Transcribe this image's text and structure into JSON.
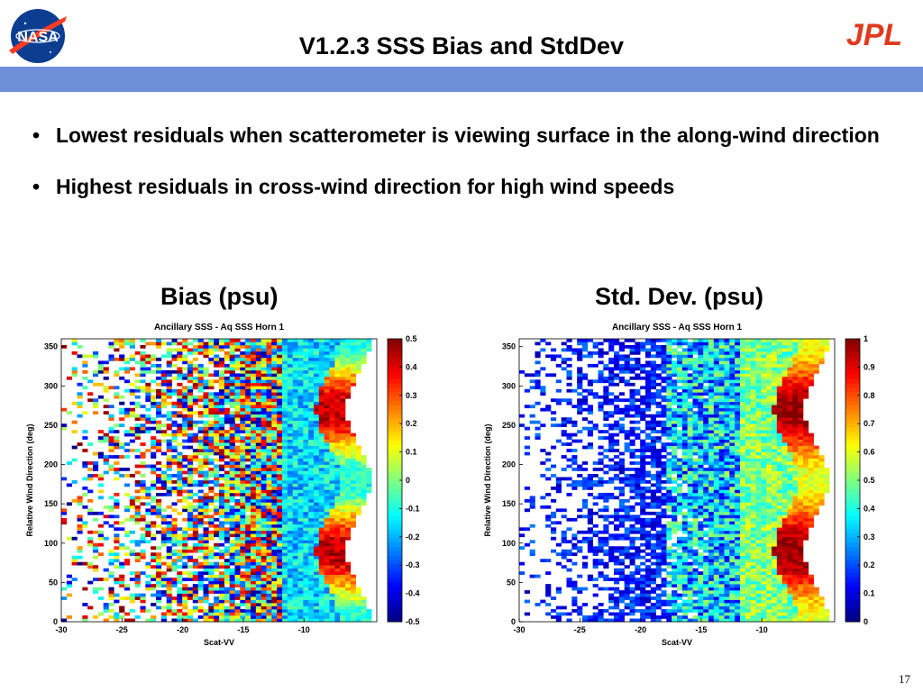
{
  "slide": {
    "title": "V1.2.3 SSS Bias and StdDev",
    "page_number": "17",
    "logos": [
      "NASA",
      "JPL"
    ],
    "bullets": [
      "Lowest residuals when scatterometer is viewing surface in the along-wind direction",
      "Highest residuals in cross-wind direction for high wind speeds"
    ],
    "bullet_marker": "•"
  },
  "panels": {
    "left_label": "Bias (psu)",
    "right_label": "Std. Dev. (psu)"
  },
  "chart_data": [
    {
      "type": "heatmap",
      "title": "Ancillary SSS - Aq SSS Horn 1",
      "xlabel": "Scat-VV",
      "ylabel": "Relative Wind Direction (deg)",
      "xlim": [
        -30,
        -4
      ],
      "ylim": [
        0,
        360
      ],
      "x_ticks": [
        "-30",
        "-25",
        "-20",
        "-15",
        "-10"
      ],
      "y_ticks": [
        "0",
        "50",
        "100",
        "150",
        "200",
        "250",
        "300",
        "350"
      ],
      "colorbar": {
        "label": "Bias (psu)",
        "range": [
          -0.5,
          0.5
        ],
        "ticks": [
          "-0.5",
          "-0.4",
          "-0.3",
          "-0.2",
          "-0.1",
          "0",
          "0.1",
          "0.2",
          "0.3",
          "0.4",
          "0.5"
        ],
        "colormap": "jet"
      },
      "description_values": {
        "low_wind_region_x": [
          -30,
          -12
        ],
        "low_wind_value_range": [
          -0.5,
          0.5
        ],
        "along_wind_center_value": -0.1,
        "cross_wind_high_speed_value": 0.45,
        "data_edge_min_x_at_90_270deg": -6.5,
        "data_edge_max_x_at_0_180_360deg": -4.5
      }
    },
    {
      "type": "heatmap",
      "title": "Ancillary SSS - Aq SSS Horn 1",
      "xlabel": "Scat-VV",
      "ylabel": "Relative Wind Direction (deg)",
      "xlim": [
        -30,
        -4
      ],
      "ylim": [
        0,
        360
      ],
      "x_ticks": [
        "-30",
        "-25",
        "-20",
        "-15",
        "-10"
      ],
      "y_ticks": [
        "0",
        "50",
        "100",
        "150",
        "200",
        "250",
        "300",
        "350"
      ],
      "colorbar": {
        "label": "Std. Dev. (psu)",
        "range": [
          0,
          1
        ],
        "ticks": [
          "0",
          "0.1",
          "0.2",
          "0.3",
          "0.4",
          "0.5",
          "0.6",
          "0.7",
          "0.8",
          "0.9",
          "1"
        ],
        "colormap": "jet"
      },
      "description_values": {
        "low_wind_region_value": 0.1,
        "along_wind_center_value": 0.5,
        "cross_wind_high_speed_value": 0.95,
        "data_edge_min_x_at_90_270deg": -6.5,
        "data_edge_max_x_at_0_180_360deg": -4.5
      }
    }
  ]
}
